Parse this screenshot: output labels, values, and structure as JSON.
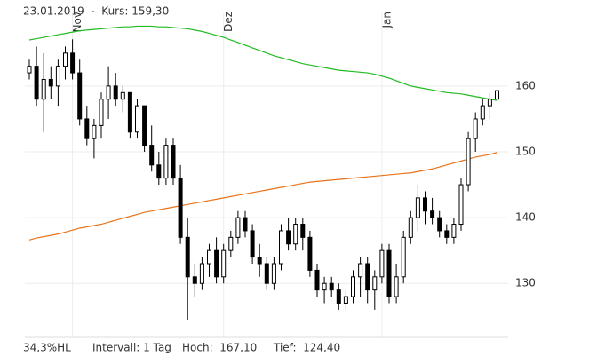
{
  "chart_data": {
    "type": "candlestick",
    "title": "23.01.2019  -  Kurs: 159,30",
    "footer": [
      "34,3%HL",
      "Intervall: 1 Tag",
      "Hoch:  167,10",
      "Tief:  124,40"
    ],
    "categories": [
      null,
      null,
      null,
      null,
      null,
      null,
      "Nov",
      null,
      null,
      null,
      null,
      null,
      null,
      null,
      null,
      null,
      null,
      null,
      null,
      null,
      null,
      null,
      null,
      null,
      null,
      null,
      null,
      "Dez",
      null,
      null,
      null,
      null,
      null,
      null,
      null,
      null,
      null,
      null,
      null,
      null,
      null,
      null,
      null,
      null,
      null,
      null,
      null,
      null,
      null,
      "Jan",
      null,
      null,
      null,
      null,
      null,
      null,
      null,
      null,
      null,
      null,
      null,
      null,
      null,
      null,
      null,
      null
    ],
    "open": [
      162,
      163,
      158,
      161,
      160,
      163,
      165,
      162,
      155,
      152,
      154,
      158,
      160,
      158,
      159,
      153,
      157,
      151,
      148,
      146,
      151,
      146,
      137,
      131,
      130,
      133,
      135,
      131,
      135,
      137,
      140,
      138,
      134,
      133,
      130,
      133,
      138,
      136,
      139,
      137,
      132,
      129,
      130,
      129,
      127,
      128,
      131,
      133,
      129,
      131,
      135,
      128,
      131,
      137,
      140,
      143,
      141,
      140,
      138,
      137,
      139,
      145,
      152,
      155,
      157,
      158
    ],
    "high": [
      164,
      166,
      165,
      163,
      164,
      166,
      167.1,
      164,
      157,
      155,
      159,
      163,
      162,
      160,
      159,
      158,
      157,
      154,
      150,
      152,
      152,
      148,
      140,
      133,
      134,
      136,
      137,
      136,
      138,
      141,
      141,
      139,
      136,
      134,
      134,
      139,
      140,
      140,
      140,
      138,
      133,
      131,
      131,
      130,
      129,
      132,
      134,
      134,
      132,
      136,
      136,
      133,
      138,
      141,
      145,
      144,
      143,
      141,
      139,
      140,
      146,
      153,
      156,
      158,
      159,
      160
    ],
    "low": [
      161,
      157,
      153,
      158,
      157,
      161,
      161,
      154,
      151,
      149,
      152,
      155,
      157,
      156,
      152,
      152,
      150,
      147,
      145,
      145,
      145,
      136,
      124.4,
      128,
      129,
      131,
      130,
      130,
      134,
      136,
      137,
      133,
      131,
      129,
      129,
      132,
      135,
      135,
      135,
      131,
      128,
      127,
      128,
      126,
      126,
      127,
      128,
      127,
      126,
      130,
      127,
      127,
      130,
      136,
      138,
      139,
      139,
      137,
      136,
      136,
      138,
      144,
      150,
      154,
      155,
      155
    ],
    "close": [
      163,
      158,
      161,
      160,
      163,
      165,
      162,
      155,
      152,
      154,
      158,
      160,
      158,
      159,
      153,
      157,
      151,
      148,
      146,
      151,
      146,
      137,
      131,
      130,
      133,
      135,
      131,
      135,
      137,
      140,
      138,
      134,
      133,
      130,
      133,
      138,
      136,
      139,
      137,
      132,
      129,
      130,
      129,
      127,
      128,
      131,
      133,
      129,
      131,
      135,
      128,
      131,
      137,
      140,
      143,
      141,
      140,
      138,
      137,
      139,
      145,
      152,
      155,
      157,
      158,
      159.3
    ],
    "candle_color": "#000000",
    "up_fill": "#ffffff",
    "lines": [
      {
        "color": "#22bb22",
        "values": [
          167.0,
          167.2,
          167.4,
          167.6,
          167.8,
          168.0,
          168.2,
          168.4,
          168.5,
          168.6,
          168.7,
          168.8,
          168.9,
          169.0,
          169.0,
          169.1,
          169.1,
          169.1,
          169.0,
          169.0,
          168.9,
          168.8,
          168.7,
          168.5,
          168.3,
          168.0,
          167.7,
          167.4,
          167.0,
          166.6,
          166.2,
          165.8,
          165.4,
          165.0,
          164.6,
          164.3,
          164.0,
          163.7,
          163.4,
          163.2,
          163.0,
          162.8,
          162.6,
          162.4,
          162.3,
          162.2,
          162.1,
          162.0,
          161.8,
          161.5,
          161.2,
          160.8,
          160.4,
          160.0,
          159.8,
          159.6,
          159.4,
          159.2,
          159.0,
          158.9,
          158.8,
          158.6,
          158.4,
          158.2,
          158.0,
          157.8
        ]
      },
      {
        "color": "#e8731a",
        "values": [
          136.6,
          136.9,
          137.1,
          137.3,
          137.5,
          137.8,
          138.1,
          138.4,
          138.6,
          138.8,
          139.0,
          139.3,
          139.6,
          139.9,
          140.2,
          140.5,
          140.8,
          141.0,
          141.2,
          141.4,
          141.6,
          141.8,
          142.0,
          142.2,
          142.4,
          142.6,
          142.8,
          143.0,
          143.2,
          143.4,
          143.6,
          143.8,
          144.0,
          144.2,
          144.4,
          144.6,
          144.8,
          145.0,
          145.2,
          145.4,
          145.5,
          145.6,
          145.7,
          145.8,
          145.9,
          146.0,
          146.1,
          146.2,
          146.3,
          146.4,
          146.5,
          146.6,
          146.7,
          146.8,
          147.0,
          147.2,
          147.4,
          147.7,
          148.0,
          148.3,
          148.6,
          148.9,
          149.2,
          149.4,
          149.6,
          149.9
        ]
      }
    ],
    "ylim": [
      121.8,
      169.7
    ],
    "yticks": [
      130,
      140,
      150,
      160
    ],
    "grid": true
  }
}
